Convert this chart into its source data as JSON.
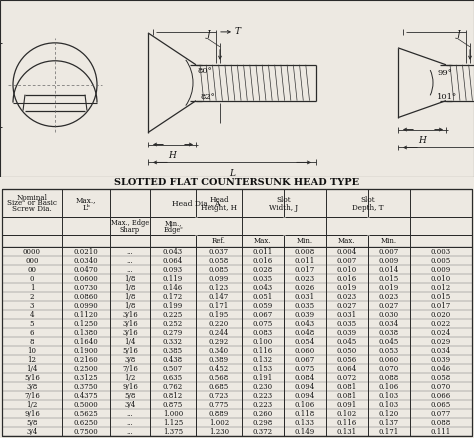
{
  "title": "SLOTTED FLAT COUNTERSUNK HEAD TYPE",
  "rows": [
    [
      "0000",
      "0.0210",
      "...",
      "0.043",
      "0.037",
      "0.011",
      "0.008",
      "0.004",
      "0.007",
      "0.003"
    ],
    [
      "000",
      "0.0340",
      "...",
      "0.064",
      "0.058",
      "0.016",
      "0.011",
      "0.007",
      "0.009",
      "0.005"
    ],
    [
      "00",
      "0.0470",
      "...",
      "0.093",
      "0.085",
      "0.028",
      "0.017",
      "0.010",
      "0.014",
      "0.009"
    ],
    [
      "0",
      "0.0600",
      "1/8",
      "0.119",
      "0.099",
      "0.035",
      "0.023",
      "0.016",
      "0.015",
      "0.010"
    ],
    [
      "1",
      "0.0730",
      "1/8",
      "0.146",
      "0.123",
      "0.043",
      "0.026",
      "0.019",
      "0.019",
      "0.012"
    ],
    [
      "2",
      "0.0860",
      "1/8",
      "0.172",
      "0.147",
      "0.051",
      "0.031",
      "0.023",
      "0.023",
      "0.015"
    ],
    [
      "3",
      "0.0990",
      "1/8",
      "0.199",
      "0.171",
      "0.059",
      "0.035",
      "0.027",
      "0.027",
      "0.017"
    ],
    [
      "4",
      "0.1120",
      "3/16",
      "0.225",
      "0.195",
      "0.067",
      "0.039",
      "0.031",
      "0.030",
      "0.020"
    ],
    [
      "5",
      "0.1250",
      "3/16",
      "0.252",
      "0.220",
      "0.075",
      "0.043",
      "0.035",
      "0.034",
      "0.022"
    ],
    [
      "6",
      "0.1380",
      "3/16",
      "0.279",
      "0.244",
      "0.083",
      "0.048",
      "0.039",
      "0.038",
      "0.024"
    ],
    [
      "8",
      "0.1640",
      "1/4",
      "0.332",
      "0.292",
      "0.100",
      "0.054",
      "0.045",
      "0.045",
      "0.029"
    ],
    [
      "10",
      "0.1900",
      "5/16",
      "0.385",
      "0.340",
      "0.116",
      "0.060",
      "0.050",
      "0.053",
      "0.034"
    ],
    [
      "12",
      "0.2160",
      "3/8",
      "0.438",
      "0.389",
      "0.132",
      "0.067",
      "0.056",
      "0.060",
      "0.039"
    ],
    [
      "1/4",
      "0.2500",
      "7/16",
      "0.507",
      "0.452",
      "0.153",
      "0.075",
      "0.064",
      "0.070",
      "0.046"
    ],
    [
      "5/16",
      "0.3125",
      "1/2",
      "0.635",
      "0.568",
      "0.191",
      "0.084",
      "0.072",
      "0.088",
      "0.058"
    ],
    [
      "3/8",
      "0.3750",
      "9/16",
      "0.762",
      "0.685",
      "0.230",
      "0.094",
      "0.081",
      "0.106",
      "0.070"
    ],
    [
      "7/16",
      "0.4375",
      "5/8",
      "0.812",
      "0.723",
      "0.223",
      "0.094",
      "0.081",
      "0.103",
      "0.066"
    ],
    [
      "1/2",
      "0.5000",
      "3/4",
      "0.875",
      "0.775",
      "0.223",
      "0.106",
      "0.091",
      "0.103",
      "0.065"
    ],
    [
      "9/16",
      "0.5625",
      "...",
      "1.000",
      "0.889",
      "0.260",
      "0.118",
      "0.102",
      "0.120",
      "0.077"
    ],
    [
      "5/8",
      "0.6250",
      "...",
      "1.125",
      "1.002",
      "0.298",
      "0.133",
      "0.116",
      "0.137",
      "0.088"
    ],
    [
      "3/4",
      "0.7500",
      "...",
      "1.375",
      "1.230",
      "0.372",
      "0.149",
      "0.131",
      "0.171",
      "0.111"
    ]
  ],
  "bg_color": "#ede9e2",
  "line_color": "#2a2a2a",
  "text_color": "#111111"
}
